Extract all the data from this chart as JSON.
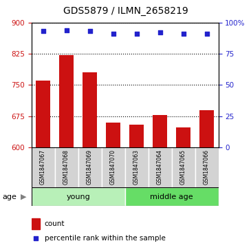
{
  "title": "GDS5879 / ILMN_2658219",
  "samples": [
    "GSM1847067",
    "GSM1847068",
    "GSM1847069",
    "GSM1847070",
    "GSM1847063",
    "GSM1847064",
    "GSM1847065",
    "GSM1847066"
  ],
  "bar_values": [
    760,
    822,
    780,
    660,
    655,
    678,
    648,
    690
  ],
  "bar_baseline": 600,
  "percentile_values": [
    93,
    94,
    93,
    91,
    91,
    92,
    91,
    91
  ],
  "bar_color": "#cc1111",
  "dot_color": "#2222cc",
  "ylim_left": [
    600,
    900
  ],
  "ylim_right": [
    0,
    100
  ],
  "yticks_left": [
    600,
    675,
    750,
    825,
    900
  ],
  "yticks_right": [
    0,
    25,
    50,
    75,
    100
  ],
  "ytick_right_labels": [
    "0",
    "25",
    "50",
    "75",
    "100%"
  ],
  "groups": [
    {
      "label": "young",
      "start": 0,
      "end": 3,
      "color": "#b8f0b8"
    },
    {
      "label": "middle age",
      "start": 4,
      "end": 7,
      "color": "#66dd66"
    }
  ],
  "sample_bg_color": "#d3d3d3",
  "age_label": "age",
  "legend_items": [
    {
      "color": "#cc1111",
      "label": "count"
    },
    {
      "color": "#2222cc",
      "label": "percentile rank within the sample"
    }
  ]
}
